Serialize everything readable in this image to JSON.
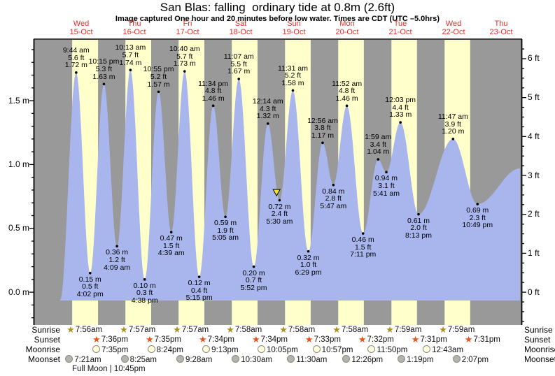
{
  "chart_data": {
    "type": "line",
    "title": "San Blas: falling  ordinary tide at 0.8m (2.6ft)",
    "subtitle": "Image captured One hour and 20 minutes before low water. Times are CDT (UTC –5.0hrs)",
    "xlabel": "",
    "ylabel_left": "meters",
    "ylabel_right": "feet",
    "y_axis_left": {
      "tick_labels": [
        "0.0 m",
        "0.5 m",
        "1.0 m",
        "1.5 m"
      ],
      "tick_values": [
        0.0,
        0.5,
        1.0,
        1.5
      ]
    },
    "y_axis_right": {
      "tick_labels": [
        "0 ft",
        "1 ft",
        "2 ft",
        "3 ft",
        "4 ft",
        "5 ft",
        "6 ft"
      ],
      "tick_values": [
        0,
        1,
        2,
        3,
        4,
        5,
        6
      ]
    },
    "days": [
      {
        "weekday": "Wed",
        "date": "15-Oct"
      },
      {
        "weekday": "Thu",
        "date": "16-Oct"
      },
      {
        "weekday": "Fri",
        "date": "17-Oct"
      },
      {
        "weekday": "Sat",
        "date": "18-Oct"
      },
      {
        "weekday": "Sun",
        "date": "19-Oct"
      },
      {
        "weekday": "Mon",
        "date": "20-Oct"
      },
      {
        "weekday": "Tue",
        "date": "21-Oct"
      },
      {
        "weekday": "Wed",
        "date": "22-Oct"
      },
      {
        "weekday": "Thu",
        "date": "23-Oct"
      }
    ],
    "tide_events": [
      {
        "day": 0,
        "type": "high",
        "time": "9:44 am",
        "height_m": 1.72,
        "height_ft": 5.6,
        "m_label": "1.72 m",
        "ft_label": "5.6 ft"
      },
      {
        "day": 0,
        "type": "low",
        "time": "4:02 pm",
        "height_m": 0.15,
        "height_ft": 0.5,
        "m_label": "0.15 m",
        "ft_label": "0.5 ft"
      },
      {
        "day": 0,
        "type": "high",
        "time": "10:15 pm",
        "height_m": 1.63,
        "height_ft": 5.3,
        "m_label": "1.63 m",
        "ft_label": "5.3 ft"
      },
      {
        "day": 1,
        "type": "low",
        "time": "4:09 am",
        "height_m": 0.36,
        "height_ft": 1.2,
        "m_label": "0.36 m",
        "ft_label": "1.2 ft"
      },
      {
        "day": 1,
        "type": "high",
        "time": "10:13 am",
        "height_m": 1.74,
        "height_ft": 5.7,
        "m_label": "1.74 m",
        "ft_label": "5.7 ft"
      },
      {
        "day": 1,
        "type": "low",
        "time": "4:38 pm",
        "height_m": 0.1,
        "height_ft": 0.3,
        "m_label": "0.10 m",
        "ft_label": "0.3 ft"
      },
      {
        "day": 1,
        "type": "high",
        "time": "10:55 pm",
        "height_m": 1.57,
        "height_ft": 5.2,
        "m_label": "1.57 m",
        "ft_label": "5.2 ft"
      },
      {
        "day": 2,
        "type": "low",
        "time": "4:39 am",
        "height_m": 0.47,
        "height_ft": 1.5,
        "m_label": "0.47 m",
        "ft_label": "1.5 ft"
      },
      {
        "day": 2,
        "type": "high",
        "time": "10:40 am",
        "height_m": 1.73,
        "height_ft": 5.7,
        "m_label": "1.73 m",
        "ft_label": "5.7 ft"
      },
      {
        "day": 2,
        "type": "low",
        "time": "5:15 pm",
        "height_m": 0.12,
        "height_ft": 0.4,
        "m_label": "0.12 m",
        "ft_label": "0.4 ft"
      },
      {
        "day": 2,
        "type": "high",
        "time": "11:34 pm",
        "height_m": 1.46,
        "height_ft": 4.8,
        "m_label": "1.46 m",
        "ft_label": "4.8 ft"
      },
      {
        "day": 3,
        "type": "low",
        "time": "5:05 am",
        "height_m": 0.59,
        "height_ft": 1.9,
        "m_label": "0.59 m",
        "ft_label": "1.9 ft"
      },
      {
        "day": 3,
        "type": "high",
        "time": "11:07 am",
        "height_m": 1.67,
        "height_ft": 5.5,
        "m_label": "1.67 m",
        "ft_label": "5.5 ft"
      },
      {
        "day": 3,
        "type": "low",
        "time": "5:52 pm",
        "height_m": 0.2,
        "height_ft": 0.7,
        "m_label": "0.20 m",
        "ft_label": "0.7 ft"
      },
      {
        "day": 4,
        "type": "high",
        "time": "12:14 am",
        "height_m": 1.32,
        "height_ft": 4.3,
        "m_label": "1.32 m",
        "ft_label": "4.3 ft"
      },
      {
        "day": 4,
        "type": "low",
        "time": "5:30 am",
        "height_m": 0.72,
        "height_ft": 2.4,
        "m_label": "0.72 m",
        "ft_label": "2.4 ft"
      },
      {
        "day": 4,
        "type": "high",
        "time": "11:31 am",
        "height_m": 1.58,
        "height_ft": 5.2,
        "m_label": "1.58 m",
        "ft_label": "5.2 ft"
      },
      {
        "day": 4,
        "type": "low",
        "time": "6:29 pm",
        "height_m": 0.32,
        "height_ft": 1.0,
        "m_label": "0.32 m",
        "ft_label": "1.0 ft"
      },
      {
        "day": 5,
        "type": "high",
        "time": "12:56 am",
        "height_m": 1.17,
        "height_ft": 3.8,
        "m_label": "1.17 m",
        "ft_label": "3.8 ft"
      },
      {
        "day": 5,
        "type": "low",
        "time": "5:47 am",
        "height_m": 0.84,
        "height_ft": 2.8,
        "m_label": "0.84 m",
        "ft_label": "2.8 ft"
      },
      {
        "day": 5,
        "type": "high",
        "time": "11:52 am",
        "height_m": 1.46,
        "height_ft": 4.8,
        "m_label": "1.46 m",
        "ft_label": "4.8 ft"
      },
      {
        "day": 5,
        "type": "low",
        "time": "7:11 pm",
        "height_m": 0.46,
        "height_ft": 1.5,
        "m_label": "0.46 m",
        "ft_label": "1.5 ft"
      },
      {
        "day": 6,
        "type": "high",
        "time": "1:59 am",
        "height_m": 1.04,
        "height_ft": 3.4,
        "m_label": "1.04 m",
        "ft_label": "3.4 ft"
      },
      {
        "day": 6,
        "type": "low",
        "time": "5:41 am",
        "height_m": 0.94,
        "height_ft": 3.1,
        "m_label": "0.94 m",
        "ft_label": "3.1 ft"
      },
      {
        "day": 6,
        "type": "high",
        "time": "12:03 pm",
        "height_m": 1.33,
        "height_ft": 4.4,
        "m_label": "1.33 m",
        "ft_label": "4.4 ft"
      },
      {
        "day": 6,
        "type": "low",
        "time": "8:13 pm",
        "height_m": 0.61,
        "height_ft": 2.0,
        "m_label": "0.61 m",
        "ft_label": "2.0 ft"
      },
      {
        "day": 7,
        "type": "high",
        "time": "11:47 am",
        "height_m": 1.2,
        "height_ft": 3.9,
        "m_label": "1.20 m",
        "ft_label": "3.9 ft"
      },
      {
        "day": 7,
        "type": "low",
        "time": "10:49 pm",
        "height_m": 0.69,
        "height_ft": 2.3,
        "m_label": "0.69 m",
        "ft_label": "2.3 ft"
      }
    ],
    "curve_edge_points": [
      {
        "day": 0,
        "hours": 2.5,
        "height_m": -0.06
      },
      {
        "day": 8,
        "hours": 18.0,
        "height_m": 0.97
      }
    ],
    "capture_marker": {
      "day": 4,
      "approx_time": "4:10 am"
    },
    "colors": {
      "night_band": "#999999",
      "daylight_band": "#ffffcc",
      "water": "#a9b6ee",
      "day_label_red": "#e03228",
      "sunrise_star": "#a89420",
      "sunset_star": "#e0561c",
      "moonrise_disc": "#ffffdd",
      "moonset_disc": "#b4b4ac",
      "marker_yellow": "#f0e030"
    }
  },
  "astro": {
    "row_labels": {
      "sunrise": "Sunrise",
      "sunset": "Sunset",
      "moonrise": "Moonrise",
      "moonset": "Moonset"
    },
    "sunrise": [
      {
        "day": 0,
        "time": "7:56am"
      },
      {
        "day": 1,
        "time": "7:57am"
      },
      {
        "day": 2,
        "time": "7:57am"
      },
      {
        "day": 3,
        "time": "7:58am"
      },
      {
        "day": 4,
        "time": "7:58am"
      },
      {
        "day": 5,
        "time": "7:58am"
      },
      {
        "day": 6,
        "time": "7:59am"
      },
      {
        "day": 7,
        "time": "7:59am"
      }
    ],
    "sunset": [
      {
        "day": 0,
        "time": "7:36pm"
      },
      {
        "day": 1,
        "time": "7:35pm"
      },
      {
        "day": 2,
        "time": "7:34pm"
      },
      {
        "day": 3,
        "time": "7:34pm"
      },
      {
        "day": 4,
        "time": "7:33pm"
      },
      {
        "day": 5,
        "time": "7:32pm"
      },
      {
        "day": 6,
        "time": "7:31pm"
      },
      {
        "day": 7,
        "time": "7:31pm"
      }
    ],
    "moonrise": [
      {
        "day": 0,
        "time": "7:35pm"
      },
      {
        "day": 1,
        "time": "8:24pm"
      },
      {
        "day": 2,
        "time": "9:13pm"
      },
      {
        "day": 3,
        "time": "10:05pm"
      },
      {
        "day": 4,
        "time": "10:57pm"
      },
      {
        "day": 5,
        "time": "11:50pm"
      },
      {
        "day": 7,
        "time": "12:43am"
      }
    ],
    "moonset": [
      {
        "day": 0,
        "time": "7:21am"
      },
      {
        "day": 1,
        "time": "8:25am"
      },
      {
        "day": 2,
        "time": "9:28am"
      },
      {
        "day": 3,
        "time": "10:30am"
      },
      {
        "day": 4,
        "time": "11:30am"
      },
      {
        "day": 5,
        "time": "12:26pm"
      },
      {
        "day": 6,
        "time": "1:19pm"
      },
      {
        "day": 7,
        "time": "2:07pm"
      }
    ],
    "moon_phase_note": "Full Moon | 10:45pm"
  }
}
